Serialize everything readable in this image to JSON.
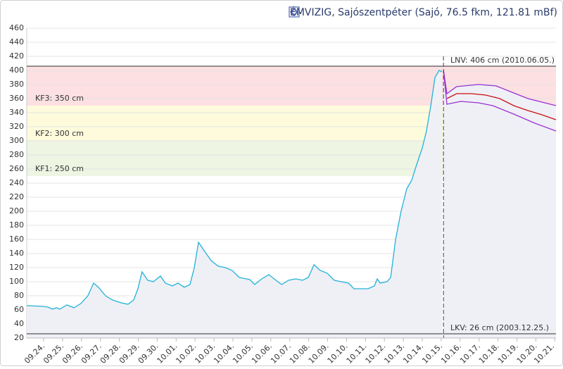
{
  "chart_data": {
    "type": "line",
    "title": "ÉMVIZIG, Sajószentpéter (Sajó, 76.5 fkm, 121.81 mBf)",
    "xlim": [
      -0.89,
      27.06
    ],
    "xticks": [
      {
        "value": 0,
        "label": "09.24."
      },
      {
        "value": 1,
        "label": "09.25."
      },
      {
        "value": 2,
        "label": "09.26."
      },
      {
        "value": 3,
        "label": "09.27."
      },
      {
        "value": 4,
        "label": "09.28."
      },
      {
        "value": 5,
        "label": "09.29."
      },
      {
        "value": 6,
        "label": "09.30."
      },
      {
        "value": 7,
        "label": "10.01."
      },
      {
        "value": 8,
        "label": "10.02."
      },
      {
        "value": 9,
        "label": "10.03."
      },
      {
        "value": 10,
        "label": "10.04."
      },
      {
        "value": 11,
        "label": "10.05."
      },
      {
        "value": 12,
        "label": "10.06."
      },
      {
        "value": 13,
        "label": "10.07."
      },
      {
        "value": 14,
        "label": "10.08."
      },
      {
        "value": 15,
        "label": "10.09."
      },
      {
        "value": 16,
        "label": "10.10."
      },
      {
        "value": 17,
        "label": "10.11."
      },
      {
        "value": 18,
        "label": "10.12."
      },
      {
        "value": 19,
        "label": "10.13."
      },
      {
        "value": 20,
        "label": "10.14."
      },
      {
        "value": 21,
        "label": "10.15."
      },
      {
        "value": 22,
        "label": "10.16."
      },
      {
        "value": 23,
        "label": "10.17."
      },
      {
        "value": 24,
        "label": "10.18."
      },
      {
        "value": 25,
        "label": "10.19."
      },
      {
        "value": 26,
        "label": "10.20."
      },
      {
        "value": 27,
        "label": "10.21."
      }
    ],
    "ylim": [
      20,
      460
    ],
    "yticks": [
      20,
      40,
      60,
      80,
      100,
      120,
      140,
      160,
      180,
      200,
      220,
      240,
      260,
      280,
      300,
      320,
      340,
      360,
      380,
      400,
      420,
      440,
      460
    ],
    "grid": true,
    "current_time": 21.12,
    "thresholds": [
      {
        "label": "KF1: 250 cm",
        "value": 250,
        "fill": "#eef5e2"
      },
      {
        "label": "KF2: 300 cm",
        "value": 300,
        "fill": "#fdfbdc"
      },
      {
        "label": "KF3: 350 cm",
        "value": 350,
        "fill": "#fde0e2"
      },
      {
        "label": "LNV: 406 cm (2010.06.05.)",
        "value": 406,
        "fill": null
      },
      {
        "label": "LKV: 26 cm (2003.12.25.)",
        "value": 26,
        "fill": null
      }
    ],
    "series": [
      {
        "color": "#22b3d8",
        "area": "#eff0f6",
        "x": [
          -0.89,
          -0.07,
          0.22,
          0.48,
          0.67,
          0.86,
          1.23,
          1.6,
          1.97,
          2.34,
          2.64,
          2.9,
          3.27,
          3.64,
          4.09,
          4.46,
          4.76,
          4.98,
          5.2,
          5.5,
          5.8,
          6.17,
          6.43,
          6.8,
          7.1,
          7.43,
          7.73,
          7.96,
          8.18,
          8.48,
          8.85,
          9.22,
          9.59,
          9.96,
          10.33,
          10.89,
          11.15,
          11.52,
          11.9,
          12.27,
          12.57,
          12.94,
          13.31,
          13.68,
          13.98,
          14.28,
          14.61,
          14.98,
          15.35,
          15.72,
          16.1,
          16.39,
          16.77,
          17.14,
          17.47,
          17.62,
          17.77,
          18.14,
          18.33,
          18.59,
          18.88,
          19.18,
          19.44,
          19.7,
          20.0,
          20.22,
          20.45,
          20.67,
          20.89,
          21.04
        ],
        "values": [
          66,
          65,
          64,
          61,
          63,
          61,
          67,
          63,
          69,
          80,
          98,
          92,
          80,
          74,
          70,
          68,
          74,
          90,
          114,
          102,
          100,
          108,
          98,
          94,
          98,
          92,
          96,
          120,
          156,
          144,
          130,
          122,
          120,
          116,
          106,
          103,
          96,
          104,
          110,
          102,
          96,
          102,
          104,
          102,
          106,
          124,
          116,
          112,
          102,
          100,
          98,
          90,
          90,
          90,
          94,
          104,
          98,
          100,
          106,
          160,
          200,
          232,
          244,
          266,
          290,
          314,
          350,
          390,
          400,
          398
        ]
      },
      {
        "color": "#9b30d0",
        "area": "#eff0f6",
        "x": [
          21.12,
          21.3,
          21.81,
          22.97,
          23.9,
          24.83,
          25.58,
          26.32,
          27.06
        ],
        "values": [
          400,
          367,
          377,
          380,
          378,
          368,
          360,
          355,
          350
        ]
      },
      {
        "color": "#cc1010",
        "area": null,
        "x": [
          21.3,
          21.81,
          22.6,
          23.35,
          24.09,
          24.83,
          25.58,
          26.32,
          27.06
        ],
        "values": [
          360,
          367,
          367,
          365,
          360,
          350,
          343,
          337,
          330
        ]
      },
      {
        "color": "#9b30d0",
        "area": null,
        "x": [
          21.12,
          21.3,
          22.04,
          22.97,
          23.72,
          24.83,
          25.95,
          27.06
        ],
        "values": [
          400,
          352,
          356,
          354,
          350,
          338,
          325,
          314
        ]
      }
    ]
  }
}
